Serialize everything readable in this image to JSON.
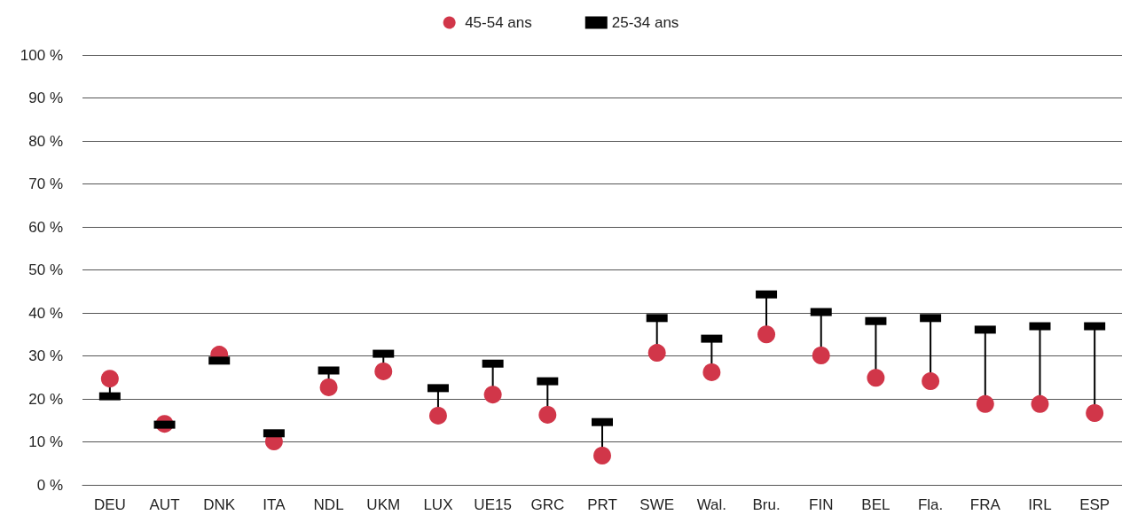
{
  "chart_data": {
    "type": "scatter",
    "categories": [
      "DEU",
      "AUT",
      "DNK",
      "ITA",
      "NDL",
      "UKM",
      "LUX",
      "UE15",
      "GRC",
      "PRT",
      "SWE",
      "Wal.",
      "Bru.",
      "FIN",
      "BEL",
      "Fla.",
      "FRA",
      "IRL",
      "ESP"
    ],
    "series": [
      {
        "name": "45-54 ans",
        "color": "#d13649",
        "marker": "circle",
        "values": [
          24.7,
          14.2,
          30.3,
          10.1,
          22.7,
          26.4,
          16.1,
          21.0,
          16.3,
          6.8,
          30.7,
          26.2,
          35.0,
          30.1,
          24.9,
          24.1,
          18.8,
          18.8,
          16.7
        ]
      },
      {
        "name": "25-34 ans",
        "color": "#000000",
        "marker": "square",
        "values": [
          20.6,
          14.0,
          28.9,
          12.0,
          26.6,
          30.5,
          22.5,
          28.2,
          24.1,
          14.6,
          38.8,
          34.0,
          44.3,
          40.2,
          38.1,
          38.8,
          36.1,
          36.9,
          36.9
        ]
      }
    ],
    "ylim": [
      0,
      100
    ],
    "yticks": [
      {
        "value": 0,
        "label": "0 %"
      },
      {
        "value": 10,
        "label": "10 %"
      },
      {
        "value": 20,
        "label": "20 %"
      },
      {
        "value": 30,
        "label": "30 %"
      },
      {
        "value": 40,
        "label": "40 %"
      },
      {
        "value": 50,
        "label": "50 %"
      },
      {
        "value": 60,
        "label": "60 %"
      },
      {
        "value": 70,
        "label": "70 %"
      },
      {
        "value": 80,
        "label": "80 %"
      },
      {
        "value": 90,
        "label": "90 %"
      },
      {
        "value": 100,
        "label": "100 %"
      }
    ],
    "grid": "y",
    "legend": "top"
  }
}
